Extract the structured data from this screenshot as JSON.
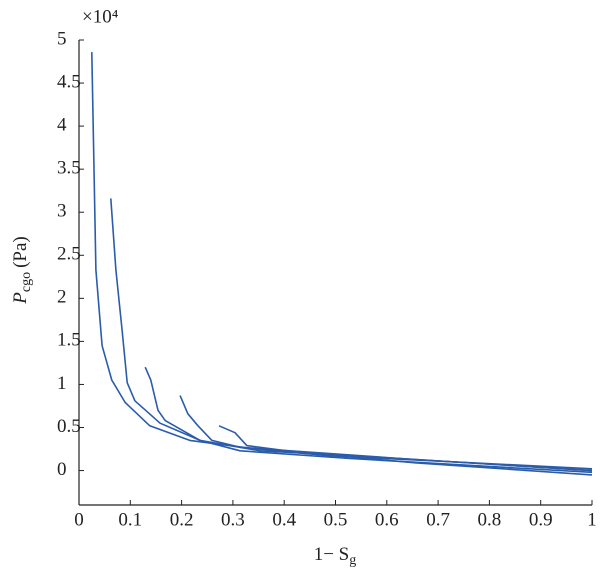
{
  "chart_data": {
    "type": "line",
    "axis_multiplier": "×10⁴",
    "y_label": "P",
    "y_label_sub": "cgo",
    "y_label_unit": "(Pa)",
    "x_label": "1− S",
    "x_label_sub": "g",
    "xlim": [
      0,
      1
    ],
    "xticks": [
      0,
      0.1,
      0.2,
      0.3,
      0.4,
      0.5,
      0.6,
      0.7,
      0.8,
      0.9,
      1
    ],
    "ylim": [
      -0.4,
      5
    ],
    "yticks": [
      0,
      0.5,
      1,
      1.5,
      2,
      2.5,
      3,
      3.5,
      4,
      4.5,
      5
    ],
    "series": [
      {
        "color": "#2a5caa",
        "x": [
          0.025,
          0.033,
          0.045,
          0.064,
          0.09,
          0.138,
          0.216,
          0.333,
          0.49,
          0.665,
          1
        ],
        "values": [
          4.86,
          2.33,
          1.45,
          1.05,
          0.79,
          0.52,
          0.35,
          0.26,
          0.17,
          0.12,
          0.02
        ]
      },
      {
        "color": "#2a5caa",
        "x": [
          0.062,
          0.072,
          0.084,
          0.094,
          0.109,
          0.158,
          0.236,
          0.353,
          0.626,
          1
        ],
        "values": [
          3.16,
          2.33,
          1.63,
          1.02,
          0.81,
          0.55,
          0.35,
          0.23,
          0.14,
          0.0
        ]
      },
      {
        "color": "#2a5caa",
        "x": [
          0.129,
          0.14,
          0.154,
          0.168,
          0.236,
          0.314,
          0.528,
          1
        ],
        "values": [
          1.2,
          1.05,
          0.7,
          0.58,
          0.35,
          0.23,
          0.14,
          -0.02
        ]
      },
      {
        "color": "#2a5caa",
        "x": [
          0.197,
          0.212,
          0.232,
          0.259,
          0.314,
          0.626,
          1
        ],
        "values": [
          0.87,
          0.66,
          0.52,
          0.35,
          0.27,
          0.14,
          0.0
        ]
      },
      {
        "color": "#2a5caa",
        "x": [
          0.273,
          0.304,
          0.327,
          0.431,
          0.655,
          1
        ],
        "values": [
          0.52,
          0.44,
          0.29,
          0.21,
          0.09,
          -0.05
        ]
      }
    ]
  }
}
